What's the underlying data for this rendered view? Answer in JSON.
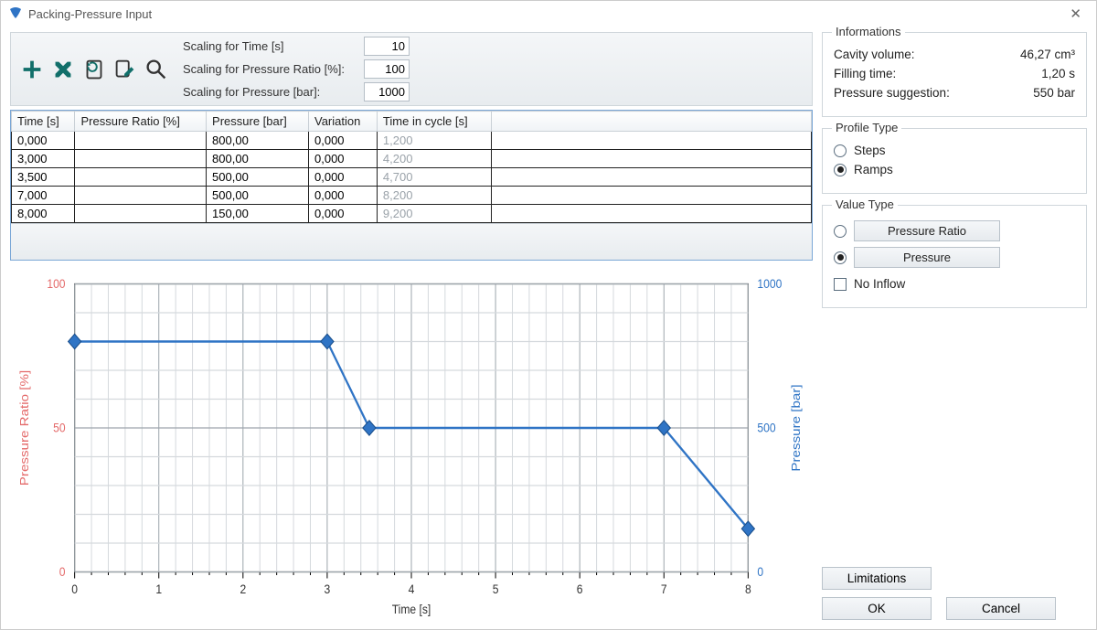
{
  "window": {
    "title": "Packing-Pressure Input"
  },
  "toolbar": {
    "icons": [
      "add",
      "delete",
      "page",
      "edit",
      "search"
    ],
    "scaling": {
      "time_label": "Scaling for Time [s]",
      "time_value": "10",
      "ratio_label": "Scaling for Pressure Ratio [%]:",
      "ratio_value": "100",
      "pressure_label": "Scaling for Pressure [bar]:",
      "pressure_value": "1000"
    }
  },
  "table": {
    "columns": [
      "Time [s]",
      "Pressure Ratio [%]",
      "Pressure [bar]",
      "Variation",
      "Time in cycle [s]"
    ],
    "rows": [
      {
        "time": "0,000",
        "ratio": "",
        "pressure": "800,00",
        "variation": "0,000",
        "cycle": "1,200"
      },
      {
        "time": "3,000",
        "ratio": "",
        "pressure": "800,00",
        "variation": "0,000",
        "cycle": "4,200"
      },
      {
        "time": "3,500",
        "ratio": "",
        "pressure": "500,00",
        "variation": "0,000",
        "cycle": "4,700"
      },
      {
        "time": "7,000",
        "ratio": "",
        "pressure": "500,00",
        "variation": "0,000",
        "cycle": "8,200"
      },
      {
        "time": "8,000",
        "ratio": "",
        "pressure": "150,00",
        "variation": "0,000",
        "cycle": "9,200"
      }
    ]
  },
  "chart": {
    "type": "line",
    "x_label": "Time [s]",
    "y_left_label": "Pressure Ratio [%]",
    "y_right_label": "Pressure [bar]",
    "x_lim": [
      0,
      8
    ],
    "x_tick_step": 1,
    "x_minor_per_major": 5,
    "y_left_lim": [
      0,
      100
    ],
    "y_left_ticks": [
      0,
      50,
      100
    ],
    "y_right_lim": [
      0,
      1000
    ],
    "y_right_ticks": [
      0,
      500,
      1000
    ],
    "grid_color": "#d5d9dd",
    "grid_major_color": "#9da5ac",
    "background_color": "#ffffff",
    "series_color": "#2f74c5",
    "marker_color": "#2f74c5",
    "marker_border": "#1a4f8c",
    "marker_shape": "diamond",
    "marker_size": 7,
    "line_width": 2.2,
    "points": [
      {
        "x": 0,
        "y": 800
      },
      {
        "x": 3,
        "y": 800
      },
      {
        "x": 3.5,
        "y": 500
      },
      {
        "x": 7,
        "y": 500
      },
      {
        "x": 8,
        "y": 150
      }
    ],
    "left_axis_color": "#e46a6a",
    "right_axis_color": "#2f74c5"
  },
  "info": {
    "legend": "Informations",
    "cavity_label": "Cavity volume:",
    "cavity_value": "46,27 cm³",
    "filling_label": "Filling time:",
    "filling_value": "1,20 s",
    "suggestion_label": "Pressure suggestion:",
    "suggestion_value": "550 bar"
  },
  "profile": {
    "legend": "Profile Type",
    "steps_label": "Steps",
    "ramps_label": "Ramps",
    "selected": "ramps"
  },
  "value_type": {
    "legend": "Value Type",
    "ratio_btn": "Pressure Ratio",
    "pressure_btn": "Pressure",
    "no_inflow_label": "No Inflow",
    "selected": "pressure",
    "no_inflow_checked": false
  },
  "buttons": {
    "limitations": "Limitations",
    "ok": "OK",
    "cancel": "Cancel"
  }
}
